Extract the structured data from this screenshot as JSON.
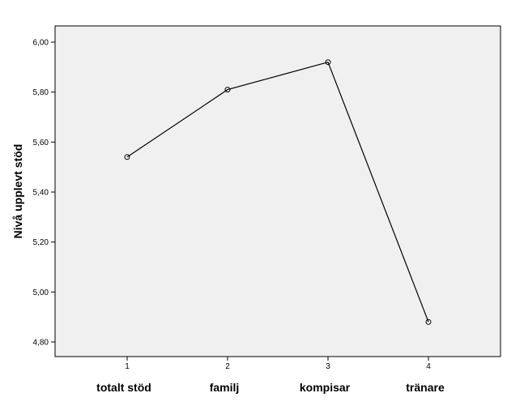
{
  "chart_data": {
    "type": "line",
    "title": "",
    "xlabel": "",
    "ylabel": "Nivå upplevt stöd",
    "x_ticks": [
      "1",
      "2",
      "3",
      "4"
    ],
    "categories": [
      "totalt stöd",
      "familj",
      "kompisar",
      "tränare"
    ],
    "series": [
      {
        "values": [
          5.54,
          5.81,
          5.92,
          4.88
        ]
      }
    ],
    "ylim": [
      4.74,
      6.04
    ],
    "y_ticks": [
      4.8,
      5.0,
      5.2,
      5.4,
      5.6,
      5.8,
      6.0
    ],
    "y_tick_labels": [
      "4,80",
      "5,00",
      "5,20",
      "5,40",
      "5,60",
      "5,80",
      "6,00"
    ],
    "grid": false,
    "marker": "open-circle",
    "colors": {
      "plot_background": "#f0f0f0",
      "line": "#000000",
      "frame": "#000000"
    }
  }
}
